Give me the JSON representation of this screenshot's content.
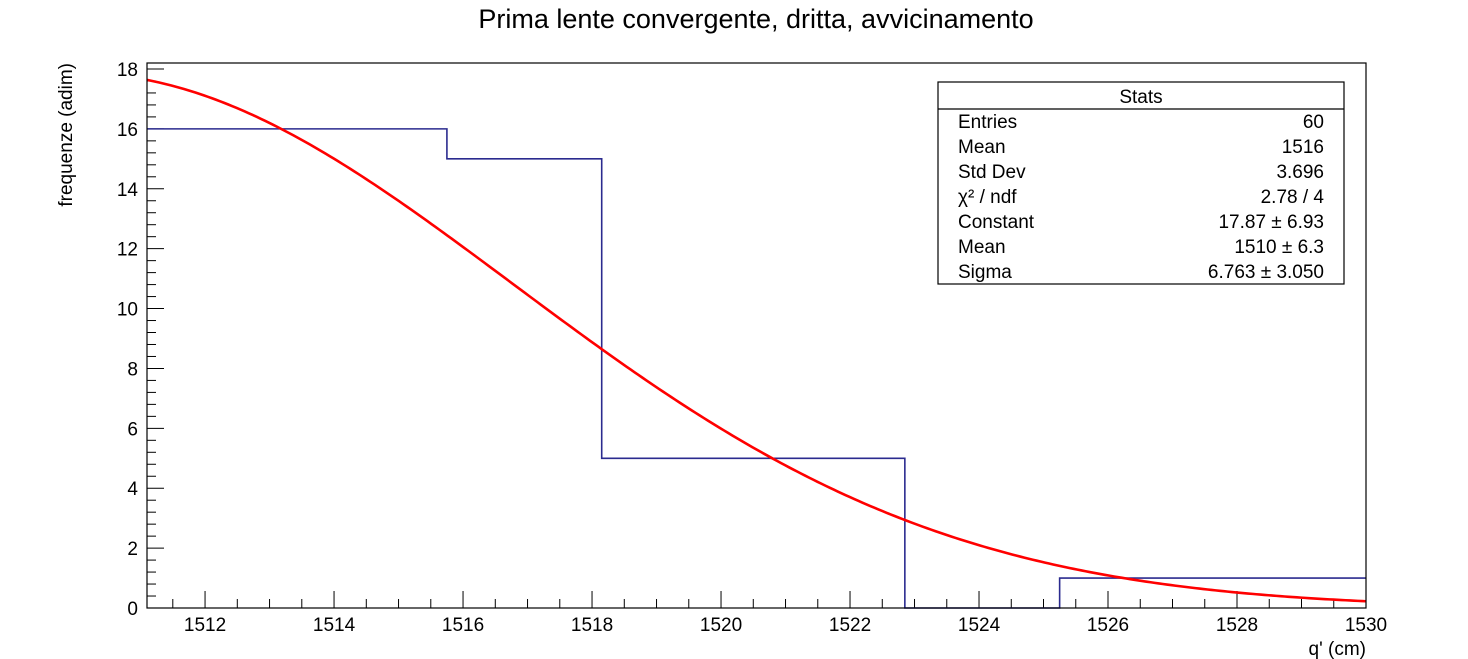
{
  "colors": {
    "histogram": "#2b2b8f",
    "fit": "#ff0000",
    "axis": "#000000",
    "background": "#ffffff"
  },
  "chart_data": {
    "type": "histogram-with-fit",
    "title": "Prima lente convergente, dritta, avvicinamento",
    "xlabel": "q' (cm)",
    "ylabel": "frequenze (adim)",
    "xlim": [
      1511.1,
      1530
    ],
    "ylim": [
      0,
      18.2
    ],
    "x_ticks": [
      1512,
      1514,
      1516,
      1518,
      1520,
      1522,
      1524,
      1526,
      1528,
      1530
    ],
    "y_ticks": [
      0,
      2,
      4,
      6,
      8,
      10,
      12,
      14,
      16,
      18
    ],
    "grid": false,
    "histogram": {
      "bin_edges": [
        1511.1,
        1515.75,
        1518.15,
        1522.85,
        1525.25,
        1530.0
      ],
      "counts": [
        16,
        15,
        5,
        0,
        1
      ]
    },
    "fit": {
      "function": "gaus",
      "constant": 17.87,
      "mean": 1510,
      "sigma": 6.763,
      "x_range": [
        1511.1,
        1530
      ]
    },
    "stats_box": {
      "title": "Stats",
      "position": "top-right",
      "rows": [
        {
          "label": "Entries",
          "value": "60"
        },
        {
          "label": "Mean",
          "value": "1516"
        },
        {
          "label": "Std Dev",
          "value": "3.696"
        },
        {
          "label": "χ² / ndf",
          "value": "2.78 / 4"
        },
        {
          "label": "Constant",
          "value": "17.87 ± 6.93"
        },
        {
          "label": "Mean",
          "value": "1510 ± 6.3"
        },
        {
          "label": "Sigma",
          "value": "6.763 ± 3.050"
        }
      ]
    }
  }
}
